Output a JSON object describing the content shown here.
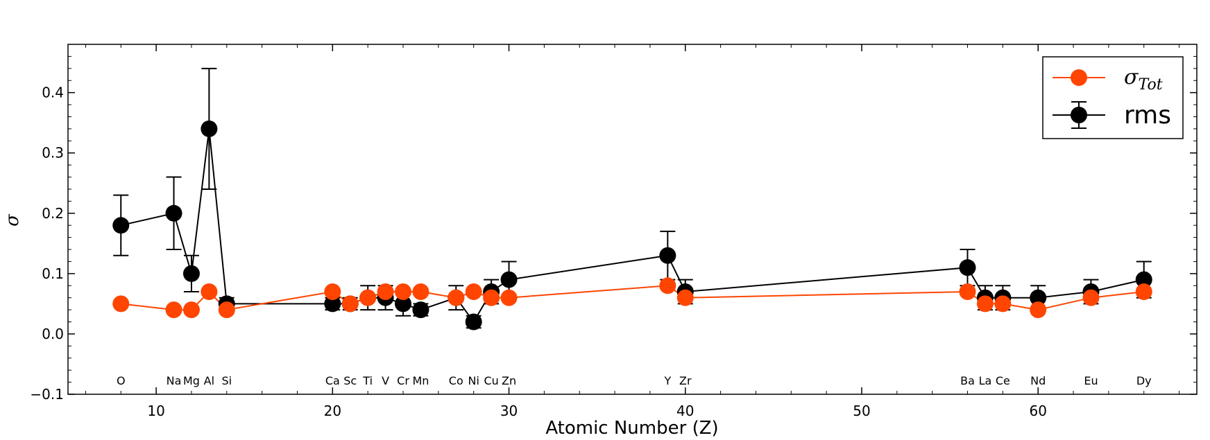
{
  "chart_data": {
    "type": "scatter",
    "title": "",
    "xlabel": "Atomic Number (Z)",
    "ylabel": "σ",
    "xlim": [
      5,
      69
    ],
    "ylim": [
      -0.1,
      0.48
    ],
    "x_ticks": [
      10,
      20,
      30,
      40,
      50,
      60
    ],
    "y_ticks": [
      -0.1,
      0.0,
      0.1,
      0.2,
      0.3,
      0.4
    ],
    "y_tick_labels": [
      "−0.1",
      "0.0",
      "0.1",
      "0.2",
      "0.3",
      "0.4"
    ],
    "grid": false,
    "legend_position": "top-right",
    "elements": [
      {
        "z": 8,
        "symbol": "O"
      },
      {
        "z": 11,
        "symbol": "Na"
      },
      {
        "z": 12,
        "symbol": "Mg"
      },
      {
        "z": 13,
        "symbol": "Al"
      },
      {
        "z": 14,
        "symbol": "Si"
      },
      {
        "z": 20,
        "symbol": "Ca"
      },
      {
        "z": 21,
        "symbol": "Sc"
      },
      {
        "z": 22,
        "symbol": "Ti"
      },
      {
        "z": 23,
        "symbol": "V"
      },
      {
        "z": 24,
        "symbol": "Cr"
      },
      {
        "z": 25,
        "symbol": "Mn"
      },
      {
        "z": 27,
        "symbol": "Co"
      },
      {
        "z": 28,
        "symbol": "Ni"
      },
      {
        "z": 29,
        "symbol": "Cu"
      },
      {
        "z": 30,
        "symbol": "Zn"
      },
      {
        "z": 39,
        "symbol": "Y"
      },
      {
        "z": 40,
        "symbol": "Zr"
      },
      {
        "z": 56,
        "symbol": "Ba"
      },
      {
        "z": 57,
        "symbol": "La"
      },
      {
        "z": 58,
        "symbol": "Ce"
      },
      {
        "z": 60,
        "symbol": "Nd"
      },
      {
        "z": 63,
        "symbol": "Eu"
      },
      {
        "z": 66,
        "symbol": "Dy"
      }
    ],
    "series": [
      {
        "name": "rms",
        "color": "#000000",
        "x": [
          8,
          11,
          12,
          13,
          14,
          20,
          21,
          22,
          23,
          24,
          25,
          27,
          28,
          29,
          30,
          39,
          40,
          56,
          57,
          58,
          60,
          63,
          66
        ],
        "y": [
          0.18,
          0.2,
          0.1,
          0.34,
          0.05,
          0.05,
          0.05,
          0.06,
          0.06,
          0.05,
          0.04,
          0.06,
          0.02,
          0.07,
          0.09,
          0.13,
          0.07,
          0.11,
          0.06,
          0.06,
          0.06,
          0.07,
          0.09
        ],
        "err": [
          0.05,
          0.06,
          0.03,
          0.1,
          0.01,
          0.01,
          0.01,
          0.02,
          0.02,
          0.02,
          0.01,
          0.02,
          0.01,
          0.02,
          0.03,
          0.04,
          0.02,
          0.03,
          0.02,
          0.02,
          0.02,
          0.02,
          0.03
        ]
      },
      {
        "name": "σTot",
        "color": "#ff4500",
        "x": [
          8,
          11,
          12,
          13,
          14,
          20,
          21,
          22,
          23,
          24,
          25,
          27,
          28,
          29,
          30,
          39,
          40,
          56,
          57,
          58,
          60,
          63,
          66
        ],
        "y": [
          0.05,
          0.04,
          0.04,
          0.07,
          0.04,
          0.07,
          0.05,
          0.06,
          0.07,
          0.07,
          0.07,
          0.06,
          0.07,
          0.06,
          0.06,
          0.08,
          0.06,
          0.07,
          0.05,
          0.05,
          0.04,
          0.06,
          0.07
        ]
      }
    ]
  },
  "legend": {
    "sigma_label": "σ",
    "sigma_sub": "Tot",
    "rms_label": "rms"
  }
}
